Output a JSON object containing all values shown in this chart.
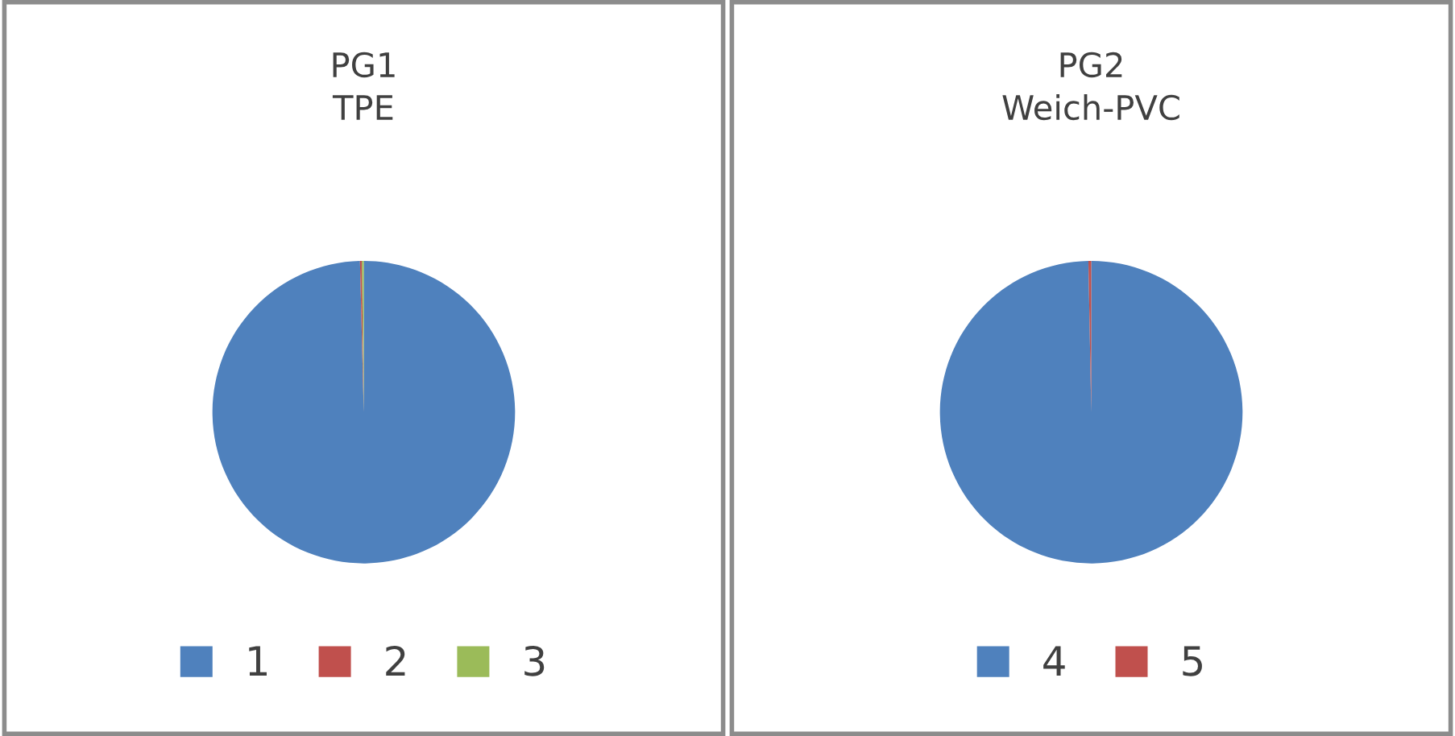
{
  "chart_data": [
    {
      "type": "pie",
      "title": "PG1\nTPE",
      "categories": [
        "1",
        "2",
        "3"
      ],
      "values": [
        99.6,
        0.2,
        0.2
      ],
      "colors": [
        "#4f81bd",
        "#c0504d",
        "#9bbb59"
      ],
      "legend": "bottom"
    },
    {
      "type": "pie",
      "title": "PG2\nWeich-PVC",
      "categories": [
        "4",
        "5"
      ],
      "values": [
        99.7,
        0.3
      ],
      "colors": [
        "#4f81bd",
        "#c0504d"
      ],
      "legend": "bottom"
    }
  ]
}
